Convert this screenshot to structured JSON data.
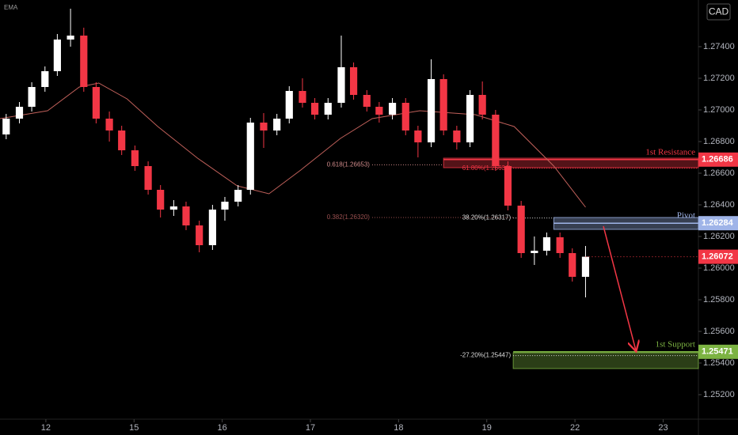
{
  "chart_data": {
    "type": "candlestick",
    "indicator_label": "EMA",
    "currency": "CAD",
    "xlim": [
      -0.52,
      7.4
    ],
    "xticks": [
      {
        "value": 0,
        "label": "12"
      },
      {
        "value": 1,
        "label": "15"
      },
      {
        "value": 2,
        "label": "16"
      },
      {
        "value": 3,
        "label": "17"
      },
      {
        "value": 4,
        "label": "18"
      },
      {
        "value": 5,
        "label": "19"
      },
      {
        "value": 6,
        "label": "22"
      },
      {
        "value": 7,
        "label": "23"
      }
    ],
    "ylim": [
      1.25045,
      1.27695
    ],
    "yticks": [
      {
        "value": 1.252,
        "label": "1.25200"
      },
      {
        "value": 1.254,
        "label": "1.25400"
      },
      {
        "value": 1.256,
        "label": "1.25600"
      },
      {
        "value": 1.258,
        "label": "1.25800"
      },
      {
        "value": 1.26,
        "label": "1.26000"
      },
      {
        "value": 1.262,
        "label": "1.26200"
      },
      {
        "value": 1.264,
        "label": "1.26400"
      },
      {
        "value": 1.266,
        "label": "1.26600"
      },
      {
        "value": 1.268,
        "label": "1.26800"
      },
      {
        "value": 1.27,
        "label": "1.27000"
      },
      {
        "value": 1.272,
        "label": "1.27200"
      },
      {
        "value": 1.274,
        "label": "1.27400"
      }
    ],
    "candles": {
      "up_color": "#ffffff",
      "down_color": "#f23645",
      "x": [
        -0.45,
        -0.3,
        -0.16,
        -0.01,
        0.13,
        0.28,
        0.43,
        0.57,
        0.72,
        0.86,
        1.01,
        1.16,
        1.3,
        1.45,
        1.59,
        1.74,
        1.89,
        2.03,
        2.18,
        2.32,
        2.47,
        2.62,
        2.76,
        2.91,
        3.05,
        3.2,
        3.35,
        3.49,
        3.64,
        3.78,
        3.93,
        4.08,
        4.22,
        4.37,
        4.51,
        4.66,
        4.81,
        4.95,
        5.1,
        5.24,
        5.39,
        5.54,
        5.68,
        5.83,
        5.97,
        6.12
      ],
      "open": [
        1.26845,
        1.26945,
        1.2702,
        1.27145,
        1.27245,
        1.27445,
        1.2747,
        1.27145,
        1.26945,
        1.2687,
        1.26745,
        1.26645,
        1.26495,
        1.2637,
        1.2639,
        1.2627,
        1.26145,
        1.2637,
        1.2642,
        1.26495,
        1.2692,
        1.2687,
        1.26945,
        1.2712,
        1.27045,
        1.2697,
        1.27045,
        1.2727,
        1.27095,
        1.2702,
        1.2697,
        1.27045,
        1.2687,
        1.26795,
        1.27195,
        1.2687,
        1.26795,
        1.27095,
        1.2697,
        1.26645,
        1.26395,
        1.26095,
        1.2611,
        1.26195,
        1.26095,
        1.25945
      ],
      "high": [
        1.26975,
        1.2705,
        1.27175,
        1.27275,
        1.2748,
        1.2764,
        1.2752,
        1.27175,
        1.2699,
        1.269,
        1.26775,
        1.26675,
        1.26525,
        1.2643,
        1.2642,
        1.263,
        1.264,
        1.2645,
        1.26525,
        1.2695,
        1.2698,
        1.26975,
        1.2715,
        1.272,
        1.27075,
        1.27075,
        1.2747,
        1.273,
        1.27125,
        1.2705,
        1.27075,
        1.27075,
        1.269,
        1.2732,
        1.27225,
        1.269,
        1.27125,
        1.2718,
        1.27,
        1.26675,
        1.26425,
        1.262,
        1.26225,
        1.26225,
        1.26125,
        1.2614
      ],
      "low": [
        1.26815,
        1.26915,
        1.2699,
        1.27115,
        1.27215,
        1.274,
        1.27115,
        1.26915,
        1.268,
        1.26715,
        1.26615,
        1.26465,
        1.2632,
        1.2633,
        1.2624,
        1.261,
        1.26115,
        1.263,
        1.2639,
        1.26465,
        1.2676,
        1.2684,
        1.26915,
        1.27015,
        1.2694,
        1.2694,
        1.27015,
        1.27065,
        1.2699,
        1.2692,
        1.2694,
        1.2684,
        1.267,
        1.26765,
        1.2684,
        1.2675,
        1.26765,
        1.2694,
        1.26615,
        1.26365,
        1.26065,
        1.2602,
        1.2608,
        1.26065,
        1.25915,
        1.25815
      ],
      "close": [
        1.26945,
        1.2702,
        1.27145,
        1.27245,
        1.27445,
        1.2747,
        1.27145,
        1.26945,
        1.2687,
        1.26745,
        1.26645,
        1.26495,
        1.2637,
        1.2639,
        1.2627,
        1.26145,
        1.2637,
        1.2642,
        1.26495,
        1.2692,
        1.2687,
        1.26945,
        1.2712,
        1.27045,
        1.2697,
        1.27045,
        1.2727,
        1.27095,
        1.2702,
        1.2697,
        1.27045,
        1.2687,
        1.26795,
        1.27195,
        1.2687,
        1.26795,
        1.27095,
        1.2697,
        1.26645,
        1.26395,
        1.26095,
        1.2611,
        1.26195,
        1.26095,
        1.25945,
        1.26072
      ]
    },
    "ema": {
      "color": "#c0605a",
      "x": [
        -0.52,
        0.02,
        0.38,
        0.6,
        0.92,
        1.27,
        1.72,
        2.17,
        2.53,
        2.89,
        3.34,
        3.7,
        4.24,
        4.87,
        5.31,
        5.76,
        6.12
      ],
      "values": [
        1.26945,
        1.26995,
        1.27145,
        1.2717,
        1.2707,
        1.26895,
        1.26695,
        1.2652,
        1.2647,
        1.2662,
        1.2682,
        1.26945,
        1.26995,
        1.2697,
        1.26895,
        1.26645,
        1.26385
      ]
    },
    "last_price": {
      "value": 1.26072,
      "color": "#f23645"
    },
    "levels": [
      {
        "name": "1st Resistance",
        "value": 1.26686,
        "color": "#f23645",
        "zone": [
          1.26635,
          1.26695
        ],
        "start": 4.51
      },
      {
        "name": "Pivot",
        "value": 1.26284,
        "color": "#9fb4e8",
        "zone": [
          1.26245,
          1.2632
        ],
        "start": 5.76
      },
      {
        "name": "1st Support",
        "value": 1.25471,
        "color": "#7cb342",
        "zone": [
          1.25365,
          1.25465
        ],
        "start": 5.3
      }
    ],
    "fib_labels": [
      {
        "text": "0.618(1.26653)",
        "value": 1.26653,
        "x": [
          3.7,
          4.51
        ],
        "color": "#d08a8a"
      },
      {
        "text": "61.80%(1.26631)",
        "value": 1.26631,
        "x": [
          5.3,
          7.4
        ],
        "color": "#f23645"
      },
      {
        "text": "0.382(1.26320)",
        "value": 1.2632,
        "x": [
          3.7,
          5.3
        ],
        "color": "#9a5050"
      },
      {
        "text": "38.20%(1.26317)",
        "value": 1.26317,
        "x": [
          5.3,
          5.76
        ],
        "color": "#dddddd"
      },
      {
        "text": "-27.20%(1.25447)",
        "value": 1.25447,
        "x": [
          5.3,
          7.4
        ],
        "color": "#dddddd"
      }
    ]
  }
}
